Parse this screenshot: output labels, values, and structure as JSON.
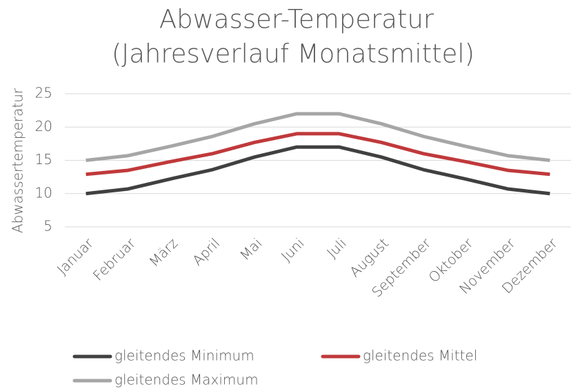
{
  "chart_data": {
    "type": "line",
    "title": [
      "Abwasser-Temperatur",
      "(Jahresverlauf Monatsmittel)"
    ],
    "y_label": "Abwassertemperatur",
    "categories": [
      "Januar",
      "Februar",
      "März",
      "April",
      "Mai",
      "Juni",
      "Juli",
      "August",
      "September",
      "Oktober",
      "November",
      "Dezember"
    ],
    "series": [
      {
        "name": "gleitendes Minimum",
        "color": "#404040",
        "values": [
          10,
          10.7,
          12.2,
          13.6,
          15.5,
          17,
          17,
          15.5,
          13.6,
          12.2,
          10.7,
          10
        ]
      },
      {
        "name": "gleitendes Mittel",
        "color": "#c0393b",
        "values": [
          12.9,
          13.5,
          14.8,
          16,
          17.7,
          19,
          19,
          17.7,
          16,
          14.8,
          13.5,
          12.9
        ]
      },
      {
        "name": "gleitendes Maximum",
        "color": "#a6a6a6",
        "values": [
          15,
          15.7,
          17.1,
          18.6,
          20.5,
          22,
          22,
          20.5,
          18.6,
          17.1,
          15.7,
          15
        ]
      }
    ],
    "ylim": [
      5,
      25
    ],
    "yticks": [
      5,
      10,
      15,
      20,
      25
    ],
    "grid": true,
    "legend": "bottom"
  }
}
